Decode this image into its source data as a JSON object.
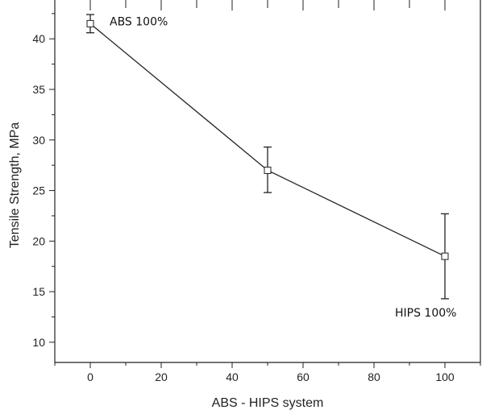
{
  "chart_data": {
    "type": "line",
    "title": "",
    "xlabel": "ABS - HIPS system",
    "ylabel": "Tensile Strength, MPa",
    "xlim": [
      -10,
      110
    ],
    "ylim": [
      8,
      44
    ],
    "x_ticks": [
      0,
      20,
      40,
      60,
      80,
      100
    ],
    "y_ticks": [
      10,
      15,
      20,
      25,
      30,
      35,
      40
    ],
    "grid": false,
    "legend": "none",
    "series": [
      {
        "x": [
          0,
          50,
          100
        ],
        "y": [
          41.5,
          27.0,
          18.5
        ],
        "error_low": [
          40.6,
          24.8,
          14.3
        ],
        "error_high": [
          42.4,
          29.3,
          22.7
        ],
        "marker": "open-square",
        "color": "#222222"
      }
    ],
    "annotations": [
      {
        "text": "ABS 100%",
        "x": 0,
        "y": 41.5
      },
      {
        "text": "HIPS 100%",
        "x": 100,
        "y": 18.5
      }
    ]
  }
}
